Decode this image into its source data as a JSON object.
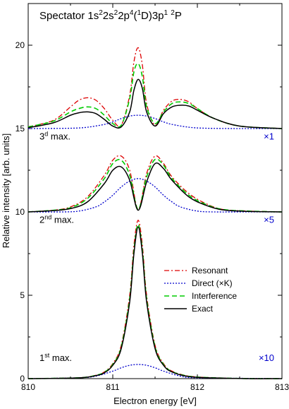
{
  "chart_data": {
    "type": "line",
    "title_parts": {
      "prefix": "Spectator 1s",
      "s1": "2",
      "mid1": "2s",
      "s2": "2",
      "mid2": "2p",
      "s3": "4",
      "mid3": "(",
      "s4": "1",
      "mid4": "D)3p",
      "s5": "1",
      "mid5": " ",
      "s6": "2",
      "suffix": "P"
    },
    "xlabel": "Electron energy [eV]",
    "ylabel": "Relative intensity [arb. units]",
    "xlim": [
      810,
      813
    ],
    "ylim": [
      0,
      22.5
    ],
    "x_ticks": [
      "810",
      "811",
      "812",
      "813"
    ],
    "y_ticks": [
      {
        "value": 0,
        "label": "0"
      },
      {
        "value": 5,
        "label": "5"
      },
      {
        "value": 10,
        "label": "10"
      },
      {
        "value": 15,
        "label": "15"
      },
      {
        "value": 20,
        "label": "20"
      }
    ],
    "panels": [
      {
        "label_base": "3",
        "label_sup": "d",
        "label_rest": " max.",
        "scale": "×1",
        "offset": 15
      },
      {
        "label_base": "2",
        "label_sup": "nd",
        "label_rest": " max.",
        "scale": "×5",
        "offset": 10
      },
      {
        "label_base": "1",
        "label_sup": "st",
        "label_rest": " max.",
        "scale": "×10",
        "offset": 0
      }
    ],
    "legend_position": "right",
    "series": [
      {
        "name": "Resonant",
        "color": "#dd0000",
        "dash": "dashdot",
        "panels": [
          {
            "x": [
              810.0,
              810.3,
              810.5,
              810.6,
              810.7,
              810.8,
              810.9,
              811.0,
              811.1,
              811.2,
              811.25,
              811.3,
              811.35,
              811.4,
              811.5,
              811.6,
              811.7,
              811.8,
              811.9,
              812.0,
              812.2,
              812.5,
              813.0
            ],
            "y": [
              15.1,
              15.5,
              16.3,
              16.7,
              16.85,
              16.7,
              16.2,
              15.5,
              15.2,
              17.0,
              19.0,
              19.85,
              18.8,
              16.5,
              15.2,
              16.1,
              16.65,
              16.75,
              16.6,
              16.2,
              15.6,
              15.15,
              15.0
            ]
          },
          {
            "x": [
              810.0,
              810.3,
              810.5,
              810.7,
              810.9,
              811.0,
              811.1,
              811.2,
              811.3,
              811.4,
              811.5,
              811.6,
              811.7,
              811.9,
              812.1,
              812.3,
              812.6,
              813.0
            ],
            "y": [
              10.0,
              10.1,
              10.3,
              10.9,
              12.2,
              13.1,
              13.35,
              12.5,
              10.15,
              12.3,
              13.35,
              12.9,
              12.1,
              11.1,
              10.5,
              10.15,
              10.05,
              10.0
            ]
          },
          {
            "x": [
              810.0,
              810.6,
              810.8,
              810.9,
              811.0,
              811.1,
              811.2,
              811.25,
              811.3,
              811.35,
              811.4,
              811.5,
              811.6,
              811.7,
              811.9,
              812.2,
              812.6,
              813.0
            ],
            "y": [
              0.0,
              0.05,
              0.2,
              0.4,
              0.9,
              2.0,
              5.0,
              8.0,
              9.5,
              8.0,
              5.0,
              2.0,
              0.9,
              0.45,
              0.15,
              0.05,
              0.0,
              0.0
            ]
          }
        ]
      },
      {
        "name": "Direct (×K)",
        "color": "#0000cc",
        "dash": "dot",
        "panels": [
          {
            "x": [
              810.0,
              810.5,
              810.7,
              810.9,
              811.0,
              811.1,
              811.2,
              811.3,
              811.4,
              811.5,
              811.6,
              811.7,
              811.9,
              812.1,
              812.5,
              813.0
            ],
            "y": [
              15.0,
              15.02,
              15.08,
              15.25,
              15.4,
              15.6,
              15.75,
              15.8,
              15.75,
              15.6,
              15.4,
              15.25,
              15.08,
              15.02,
              15.0,
              15.0
            ]
          },
          {
            "x": [
              810.0,
              810.4,
              810.6,
              810.8,
              810.9,
              811.0,
              811.1,
              811.2,
              811.3,
              811.4,
              811.5,
              811.6,
              811.7,
              811.8,
              812.0,
              812.2,
              812.6,
              813.0
            ],
            "y": [
              10.0,
              10.0,
              10.05,
              10.3,
              10.6,
              11.0,
              11.5,
              11.85,
              12.0,
              11.85,
              11.5,
              11.0,
              10.6,
              10.3,
              10.05,
              10.0,
              10.0,
              10.0
            ]
          },
          {
            "x": [
              810.0,
              810.6,
              810.8,
              811.0,
              811.1,
              811.2,
              811.3,
              811.4,
              811.5,
              811.6,
              811.8,
              812.0,
              813.0
            ],
            "y": [
              0.0,
              0.05,
              0.15,
              0.45,
              0.65,
              0.8,
              0.85,
              0.8,
              0.65,
              0.45,
              0.15,
              0.05,
              0.0
            ]
          }
        ]
      },
      {
        "name": "Interference",
        "color": "#00cc00",
        "dash": "dash",
        "panels": [
          {
            "x": [
              810.0,
              810.3,
              810.5,
              810.6,
              810.7,
              810.8,
              810.9,
              811.0,
              811.1,
              811.2,
              811.25,
              811.3,
              811.35,
              811.4,
              811.5,
              811.6,
              811.7,
              811.8,
              811.9,
              812.0,
              812.2,
              812.5,
              813.0
            ],
            "y": [
              15.1,
              15.45,
              16.0,
              16.2,
              16.3,
              16.2,
              15.8,
              15.3,
              15.2,
              16.8,
              18.4,
              18.9,
              18.1,
              16.3,
              15.3,
              16.0,
              16.5,
              16.6,
              16.5,
              16.2,
              15.6,
              15.15,
              15.0
            ]
          },
          {
            "x": [
              810.0,
              810.3,
              810.5,
              810.7,
              810.9,
              811.0,
              811.1,
              811.2,
              811.3,
              811.4,
              811.5,
              811.6,
              811.7,
              811.9,
              812.1,
              812.3,
              812.6,
              813.0
            ],
            "y": [
              10.0,
              10.1,
              10.25,
              10.8,
              12.0,
              12.9,
              13.1,
              12.2,
              10.15,
              12.1,
              13.15,
              12.8,
              12.0,
              11.0,
              10.45,
              10.15,
              10.05,
              10.0
            ]
          },
          {
            "x": [
              810.0,
              810.6,
              810.8,
              810.9,
              811.0,
              811.1,
              811.2,
              811.25,
              811.3,
              811.35,
              811.4,
              811.5,
              811.6,
              811.7,
              811.9,
              812.2,
              812.6,
              813.0
            ],
            "y": [
              0.0,
              0.05,
              0.2,
              0.38,
              0.85,
              1.9,
              4.8,
              7.7,
              9.25,
              7.7,
              4.8,
              1.9,
              0.85,
              0.42,
              0.14,
              0.05,
              0.0,
              0.0
            ]
          }
        ]
      },
      {
        "name": "Exact",
        "color": "#000000",
        "dash": "solid",
        "panels": [
          {
            "x": [
              810.0,
              810.3,
              810.5,
              810.6,
              810.7,
              810.8,
              810.9,
              811.0,
              811.1,
              811.2,
              811.25,
              811.3,
              811.35,
              811.4,
              811.5,
              811.6,
              811.7,
              811.8,
              811.9,
              812.0,
              812.2,
              812.5,
              813.0
            ],
            "y": [
              15.05,
              15.35,
              15.8,
              15.95,
              16.0,
              15.9,
              15.55,
              15.15,
              15.1,
              16.0,
              17.3,
              17.95,
              17.4,
              16.0,
              15.15,
              15.9,
              16.3,
              16.4,
              16.35,
              16.1,
              15.6,
              15.15,
              15.0
            ]
          },
          {
            "x": [
              810.0,
              810.3,
              810.5,
              810.7,
              810.9,
              811.0,
              811.1,
              811.2,
              811.3,
              811.4,
              811.5,
              811.6,
              811.7,
              811.9,
              812.1,
              812.3,
              812.6,
              813.0
            ],
            "y": [
              10.0,
              10.08,
              10.2,
              10.6,
              11.7,
              12.5,
              12.7,
              11.9,
              10.1,
              11.8,
              12.9,
              12.6,
              11.9,
              10.9,
              10.4,
              10.12,
              10.03,
              10.0
            ]
          },
          {
            "x": [
              810.0,
              810.6,
              810.8,
              810.9,
              811.0,
              811.1,
              811.2,
              811.25,
              811.3,
              811.35,
              811.4,
              811.5,
              811.6,
              811.7,
              811.9,
              812.2,
              812.6,
              813.0
            ],
            "y": [
              0.0,
              0.05,
              0.18,
              0.35,
              0.8,
              1.8,
              4.6,
              7.5,
              9.1,
              7.5,
              4.6,
              1.8,
              0.8,
              0.4,
              0.12,
              0.04,
              0.0,
              0.0
            ]
          }
        ]
      }
    ]
  }
}
